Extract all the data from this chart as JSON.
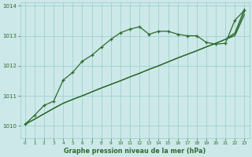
{
  "background_color": "#cce8e8",
  "grid_color": "#99cccc",
  "line_color": "#2d6b2d",
  "xlabel": "Graphe pression niveau de la mer (hPa)",
  "xlim": [
    -0.5,
    23.5
  ],
  "ylim": [
    1009.6,
    1014.1
  ],
  "yticks": [
    1010,
    1011,
    1012,
    1013,
    1014
  ],
  "xticks": [
    0,
    1,
    2,
    3,
    4,
    5,
    6,
    7,
    8,
    9,
    10,
    11,
    12,
    13,
    14,
    15,
    16,
    17,
    18,
    19,
    20,
    21,
    22,
    23
  ],
  "straight1_x": [
    0,
    1,
    2,
    3,
    4,
    5,
    6,
    7,
    8,
    9,
    10,
    11,
    12,
    13,
    14,
    15,
    16,
    17,
    18,
    19,
    20,
    21,
    22,
    23
  ],
  "straight1_y": [
    1010.05,
    1010.22,
    1010.4,
    1010.58,
    1010.75,
    1010.88,
    1011.0,
    1011.13,
    1011.26,
    1011.38,
    1011.5,
    1011.63,
    1011.75,
    1011.88,
    1012.0,
    1012.13,
    1012.26,
    1012.38,
    1012.5,
    1012.63,
    1012.75,
    1012.88,
    1013.0,
    1013.7
  ],
  "straight2_x": [
    0,
    1,
    2,
    3,
    4,
    5,
    6,
    7,
    8,
    9,
    10,
    11,
    12,
    13,
    14,
    15,
    16,
    17,
    18,
    19,
    20,
    21,
    22,
    23
  ],
  "straight2_y": [
    1010.05,
    1010.22,
    1010.4,
    1010.58,
    1010.75,
    1010.88,
    1011.0,
    1011.13,
    1011.26,
    1011.38,
    1011.5,
    1011.63,
    1011.75,
    1011.88,
    1012.0,
    1012.13,
    1012.26,
    1012.38,
    1012.5,
    1012.63,
    1012.75,
    1012.88,
    1013.05,
    1013.8
  ],
  "straight3_x": [
    0,
    1,
    2,
    3,
    4,
    5,
    6,
    7,
    8,
    9,
    10,
    11,
    12,
    13,
    14,
    15,
    16,
    17,
    18,
    19,
    20,
    21,
    22,
    23
  ],
  "straight3_y": [
    1010.05,
    1010.22,
    1010.4,
    1010.58,
    1010.75,
    1010.88,
    1011.0,
    1011.13,
    1011.26,
    1011.38,
    1011.5,
    1011.63,
    1011.75,
    1011.88,
    1012.0,
    1012.13,
    1012.26,
    1012.38,
    1012.5,
    1012.63,
    1012.75,
    1012.88,
    1013.1,
    1013.9
  ],
  "wiggly_x": [
    0,
    1,
    2,
    3,
    4,
    5,
    6,
    7,
    8,
    9,
    10,
    11,
    12,
    13,
    14,
    15,
    16,
    17,
    18,
    19,
    20,
    21,
    22,
    23
  ],
  "wiggly_y": [
    1010.05,
    1010.35,
    1010.68,
    1010.82,
    1011.52,
    1011.78,
    1012.15,
    1012.35,
    1012.62,
    1012.88,
    1013.1,
    1013.22,
    1013.3,
    1013.05,
    1013.15,
    1013.15,
    1013.05,
    1013.0,
    1013.0,
    1012.78,
    1012.72,
    1012.75,
    1013.52,
    1013.85
  ]
}
